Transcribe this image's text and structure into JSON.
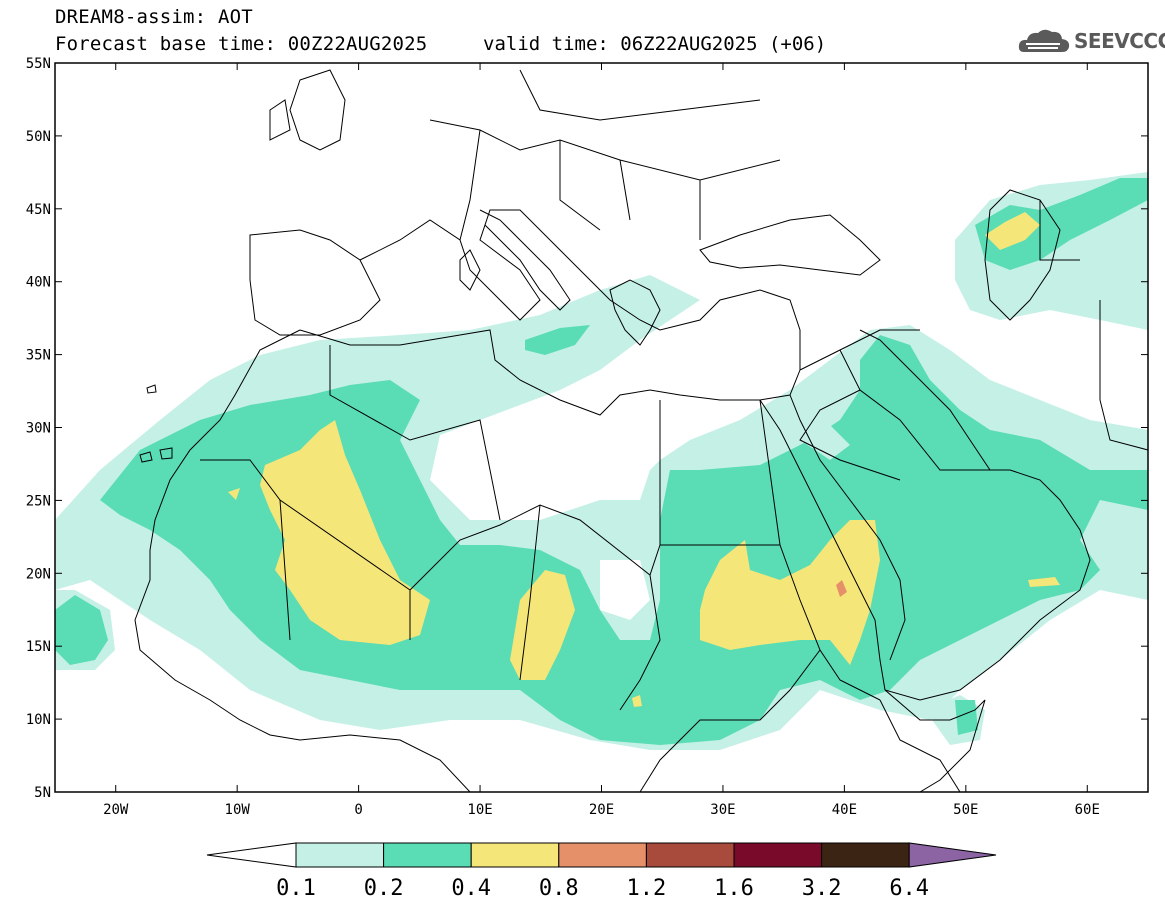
{
  "header": {
    "title": "DREAM8-assim: AOT",
    "forecast_base": "Forecast base time: 00Z22AUG2025",
    "valid_time": "valid time: 06Z22AUG2025 (+06)"
  },
  "logo": {
    "text": "SEEVCCC",
    "icon": "cloud-logo-icon"
  },
  "map": {
    "lon_range": [
      -25,
      65
    ],
    "lat_range": [
      5,
      55
    ],
    "lat_labels": [
      "55N",
      "50N",
      "45N",
      "40N",
      "35N",
      "30N",
      "25N",
      "20N",
      "15N",
      "10N",
      "5N"
    ],
    "lon_labels": [
      "20W",
      "10W",
      "0",
      "10E",
      "20E",
      "30E",
      "40E",
      "50E",
      "60E"
    ]
  },
  "colorbar": {
    "colors": [
      "#c4f0e6",
      "#5adcb4",
      "#f5e67a",
      "#e6906a",
      "#a84a3c",
      "#7a0a2a",
      "#3c2414",
      "#8c64a4"
    ],
    "labels": [
      "0.1",
      "0.2",
      "0.4",
      "0.8",
      "1.2",
      "1.6",
      "3.2",
      "6.4"
    ]
  }
}
